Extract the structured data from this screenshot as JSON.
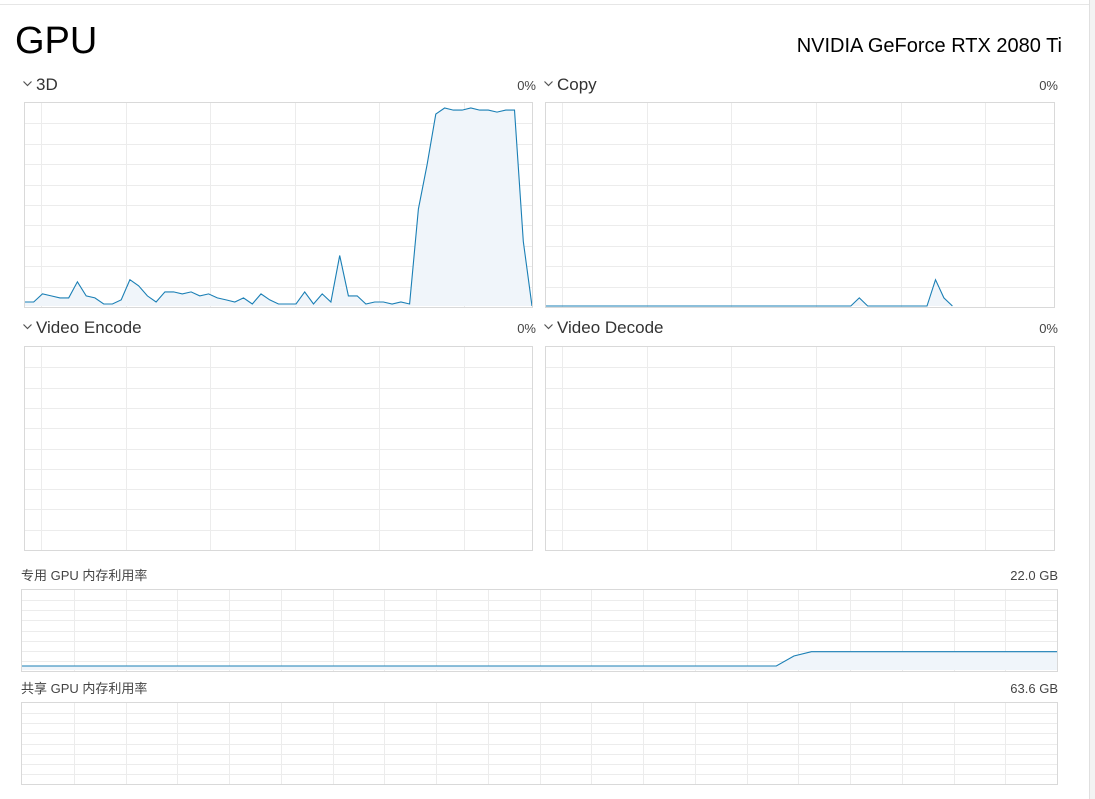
{
  "header": {
    "title": "GPU",
    "device_name": "NVIDIA GeForce RTX 2080 Ti"
  },
  "engines": [
    {
      "label": "3D",
      "percent": "0%",
      "icon": "chevron-down-icon"
    },
    {
      "label": "Copy",
      "percent": "0%",
      "icon": "chevron-down-icon"
    },
    {
      "label": "Video Encode",
      "percent": "0%",
      "icon": "chevron-down-icon"
    },
    {
      "label": "Video Decode",
      "percent": "0%",
      "icon": "chevron-down-icon"
    }
  ],
  "memory": {
    "dedicated_label": "专用 GPU 内存利用率",
    "dedicated_value": "22.0 GB",
    "shared_label": "共享 GPU 内存利用率",
    "shared_value": "63.6 GB"
  },
  "colors": {
    "line": "#1a7fb5",
    "fill": "#f0f5fa",
    "grid": "#ececec",
    "border": "#d9d9d9"
  },
  "chart_data": [
    {
      "type": "area",
      "name": "3D",
      "ylim": [
        0,
        100
      ],
      "grid": true,
      "values": [
        2,
        2,
        6,
        5,
        4,
        4,
        12,
        5,
        4,
        1,
        1,
        3,
        13,
        10,
        5,
        2,
        7,
        7,
        6,
        7,
        5,
        6,
        4,
        3,
        2,
        4,
        1,
        6,
        3,
        1,
        1,
        1,
        7,
        1,
        6,
        2,
        25,
        5,
        5,
        1,
        2,
        2,
        1,
        2,
        1,
        48,
        70,
        95,
        98,
        97,
        97,
        98,
        97,
        97,
        96,
        97,
        97,
        32,
        0
      ]
    },
    {
      "type": "area",
      "name": "Copy",
      "ylim": [
        0,
        100
      ],
      "grid": true,
      "values": [
        0,
        0,
        0,
        0,
        0,
        0,
        0,
        0,
        0,
        0,
        0,
        0,
        0,
        0,
        0,
        0,
        0,
        0,
        0,
        0,
        0,
        0,
        0,
        0,
        0,
        0,
        0,
        0,
        0,
        0,
        0,
        0,
        0,
        0,
        0,
        0,
        0,
        4,
        0,
        0,
        0,
        0,
        0,
        0,
        0,
        0,
        13,
        4,
        0
      ]
    },
    {
      "type": "area",
      "name": "Video Encode",
      "ylim": [
        0,
        100
      ],
      "grid": true,
      "values": []
    },
    {
      "type": "area",
      "name": "Video Decode",
      "ylim": [
        0,
        100
      ],
      "grid": true,
      "values": []
    },
    {
      "type": "area",
      "name": "专用 GPU 内存利用率",
      "ylim": [
        0,
        22.0
      ],
      "grid": true,
      "values": [
        1.1,
        1.1,
        1.1,
        1.1,
        1.1,
        1.1,
        1.1,
        1.1,
        1.1,
        1.1,
        1.1,
        1.1,
        1.1,
        1.1,
        1.1,
        1.1,
        1.1,
        1.1,
        1.1,
        1.1,
        1.1,
        1.1,
        1.1,
        1.1,
        1.1,
        1.1,
        1.1,
        1.1,
        1.1,
        1.1,
        1.1,
        1.1,
        1.1,
        1.1,
        1.1,
        1.1,
        1.1,
        1.1,
        1.1,
        1.1,
        1.1,
        1.1,
        1.1,
        1.1,
        3.9,
        5.1,
        5.1,
        5.1,
        5.1,
        5.1,
        5.1,
        5.1,
        5.1,
        5.1,
        5.1,
        5.1,
        5.1,
        5.1,
        5.1,
        5.1
      ]
    },
    {
      "type": "area",
      "name": "共享 GPU 内存利用率",
      "ylim": [
        0,
        63.6
      ],
      "grid": true,
      "values": []
    }
  ]
}
